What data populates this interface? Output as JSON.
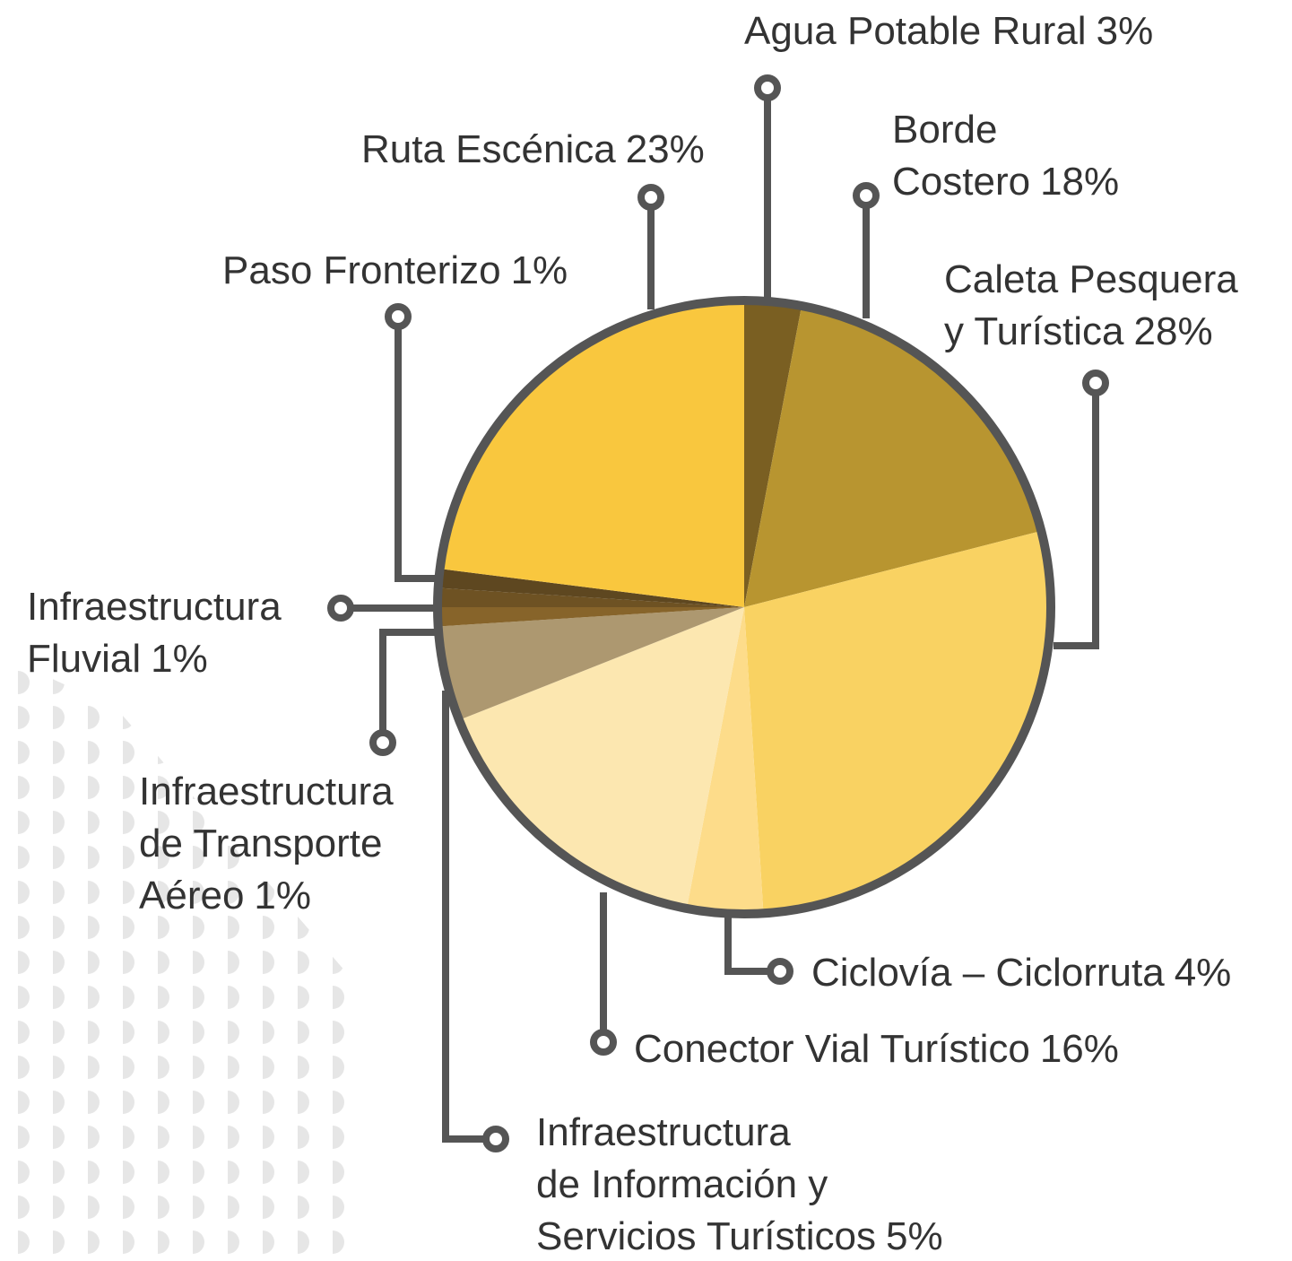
{
  "chart_data": {
    "type": "pie",
    "categories": [
      "Agua Potable Rural",
      "Borde\nCostero",
      "Caleta Pesquera\ny Turística",
      "Ciclovía – Ciclorruta",
      "Conector Vial Turístico",
      "Infraestructura\nde Información y\nServicios Turísticos",
      "Infraestructura\nde Transporte\nAéreo",
      "Infraestructura\nFluvial",
      "Paso Fronterizo",
      "Ruta Escénica"
    ],
    "values": [
      3,
      18,
      28,
      4,
      16,
      5,
      1,
      1,
      1,
      23
    ],
    "value_labels": [
      "3%",
      "18%",
      "28%",
      "4%",
      "16%",
      "5%",
      "1%",
      "1%",
      "1%",
      "23%"
    ],
    "colors": [
      "#7a5f22",
      "#b89530",
      "#f9d262",
      "#fddc8a",
      "#fce7b0",
      "#ad9870",
      "#87642a",
      "#6e5223",
      "#5e4720",
      "#f9c73e"
    ]
  }
}
